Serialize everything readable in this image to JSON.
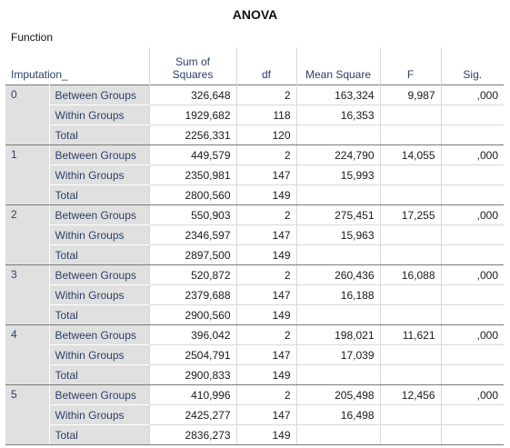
{
  "title": "ANOVA",
  "dependent_variable": "Function",
  "headers": {
    "imputation": "Imputation_",
    "sum_of_squares_line1": "Sum of",
    "sum_of_squares_line2": "Squares",
    "df": "df",
    "mean_square": "Mean Square",
    "f": "F",
    "sig": "Sig."
  },
  "groups": [
    {
      "imputation": "0",
      "rows": [
        {
          "label": "Between Groups",
          "ss": "326,648",
          "df": "2",
          "ms": "163,324",
          "f": "9,987",
          "sig": ",000"
        },
        {
          "label": "Within Groups",
          "ss": "1929,682",
          "df": "118",
          "ms": "16,353",
          "f": "",
          "sig": ""
        },
        {
          "label": "Total",
          "ss": "2256,331",
          "df": "120",
          "ms": "",
          "f": "",
          "sig": ""
        }
      ]
    },
    {
      "imputation": "1",
      "rows": [
        {
          "label": "Between Groups",
          "ss": "449,579",
          "df": "2",
          "ms": "224,790",
          "f": "14,055",
          "sig": ",000"
        },
        {
          "label": "Within Groups",
          "ss": "2350,981",
          "df": "147",
          "ms": "15,993",
          "f": "",
          "sig": ""
        },
        {
          "label": "Total",
          "ss": "2800,560",
          "df": "149",
          "ms": "",
          "f": "",
          "sig": ""
        }
      ]
    },
    {
      "imputation": "2",
      "rows": [
        {
          "label": "Between Groups",
          "ss": "550,903",
          "df": "2",
          "ms": "275,451",
          "f": "17,255",
          "sig": ",000"
        },
        {
          "label": "Within Groups",
          "ss": "2346,597",
          "df": "147",
          "ms": "15,963",
          "f": "",
          "sig": ""
        },
        {
          "label": "Total",
          "ss": "2897,500",
          "df": "149",
          "ms": "",
          "f": "",
          "sig": ""
        }
      ]
    },
    {
      "imputation": "3",
      "rows": [
        {
          "label": "Between Groups",
          "ss": "520,872",
          "df": "2",
          "ms": "260,436",
          "f": "16,088",
          "sig": ",000"
        },
        {
          "label": "Within Groups",
          "ss": "2379,688",
          "df": "147",
          "ms": "16,188",
          "f": "",
          "sig": ""
        },
        {
          "label": "Total",
          "ss": "2900,560",
          "df": "149",
          "ms": "",
          "f": "",
          "sig": ""
        }
      ]
    },
    {
      "imputation": "4",
      "rows": [
        {
          "label": "Between Groups",
          "ss": "396,042",
          "df": "2",
          "ms": "198,021",
          "f": "11,621",
          "sig": ",000"
        },
        {
          "label": "Within Groups",
          "ss": "2504,791",
          "df": "147",
          "ms": "17,039",
          "f": "",
          "sig": ""
        },
        {
          "label": "Total",
          "ss": "2900,833",
          "df": "149",
          "ms": "",
          "f": "",
          "sig": ""
        }
      ]
    },
    {
      "imputation": "5",
      "rows": [
        {
          "label": "Between Groups",
          "ss": "410,996",
          "df": "2",
          "ms": "205,498",
          "f": "12,456",
          "sig": ",000"
        },
        {
          "label": "Within Groups",
          "ss": "2425,277",
          "df": "147",
          "ms": "16,498",
          "f": "",
          "sig": ""
        },
        {
          "label": "Total",
          "ss": "2836,273",
          "df": "149",
          "ms": "",
          "f": "",
          "sig": ""
        }
      ]
    }
  ]
}
